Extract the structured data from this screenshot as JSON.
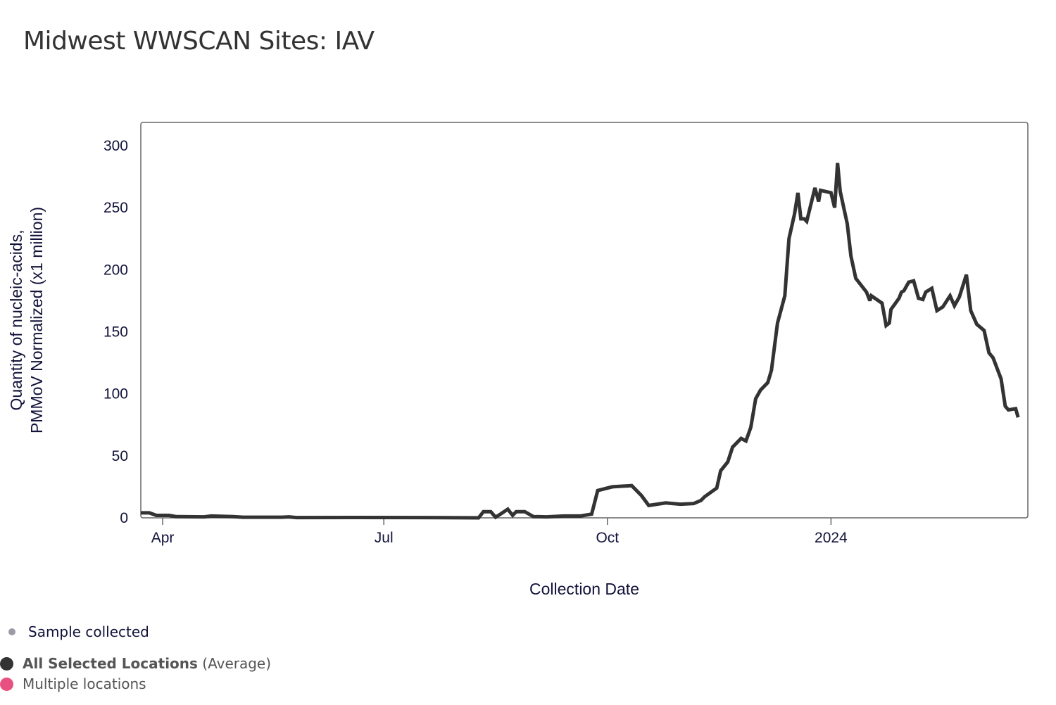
{
  "title": "Midwest WWSCAN Sites: IAV",
  "chart_data": {
    "type": "line",
    "title": "Midwest WWSCAN Sites: IAV",
    "xlabel": "Collection Date",
    "ylabel_lines": [
      "Quantity of nucleic-acids,",
      "PMMoV Normalized (x1 million)"
    ],
    "x_unit": "days since 2023-04-01",
    "xlim": [
      -9,
      356
    ],
    "ylim": [
      0,
      300
    ],
    "yticks": [
      0,
      50,
      100,
      150,
      200,
      250,
      300
    ],
    "xticks": [
      {
        "label": "Apr",
        "x": 0
      },
      {
        "label": "Jul",
        "x": 91
      },
      {
        "label": "Oct",
        "x": 183
      },
      {
        "label": "2024",
        "x": 275
      }
    ],
    "grid": false,
    "series": [
      {
        "name": "All Selected Locations (Average)",
        "color": "#333333",
        "x": [
          -9,
          -5.5,
          -2.6,
          2.6,
          5.5,
          17,
          20,
          29,
          33,
          49,
          52,
          55,
          78,
          107,
          130,
          132,
          135,
          137,
          139,
          142,
          144,
          145.5,
          149,
          152.5,
          158,
          165,
          172,
          176.5,
          179,
          185,
          193,
          197,
          200,
          207,
          213,
          218.5,
          221.5,
          223,
          228,
          229.6,
          232.5,
          234.5,
          238,
          240,
          242,
          244,
          246,
          249,
          250.5,
          253,
          256,
          257.7,
          260,
          261.4,
          262.6,
          264,
          265,
          268.4,
          269.9,
          270.7,
          275,
          276.5,
          277.7,
          278.8,
          281.7,
          283.2,
          285.2,
          289.6,
          291,
          291.6,
          296,
          297.7,
          299,
          299.7,
          303,
          304,
          305,
          307,
          309,
          311,
          312.8,
          314,
          316.5,
          318.6,
          321,
          324,
          325.8,
          327.8,
          330.7,
          332.5,
          335,
          338,
          340,
          341.7,
          345,
          346.7,
          348,
          351,
          352
        ],
        "y": [
          4,
          4,
          2,
          2,
          1,
          0.8,
          1.5,
          1,
          0.5,
          0.5,
          0.8,
          0.2,
          0.3,
          0.2,
          0,
          5,
          5,
          0.5,
          3,
          7,
          2,
          5,
          5,
          1,
          0.8,
          1.5,
          1.5,
          3,
          22,
          25,
          26,
          18,
          10,
          12,
          11,
          11.5,
          14,
          17,
          24,
          38,
          45,
          57,
          64,
          62,
          73,
          96,
          103,
          109,
          119,
          157,
          179,
          225,
          245,
          262,
          241,
          241,
          239,
          266,
          255,
          264,
          262,
          250,
          286,
          263,
          237,
          211,
          193,
          182,
          175,
          179,
          173,
          155,
          157,
          168,
          177,
          182,
          183,
          190,
          191,
          177,
          176,
          182,
          185,
          167,
          170,
          179,
          171,
          178,
          196,
          167,
          156,
          151,
          133,
          129,
          112,
          90,
          87,
          88,
          81
        ]
      }
    ]
  },
  "legend": {
    "sample": {
      "label": "Sample collected",
      "color": "#9a9aa8"
    },
    "average": {
      "label_bold": "All Selected Locations",
      "label_suffix": "(Average)",
      "color": "#333333"
    },
    "multiple": {
      "label": "Multiple locations",
      "color": "#e8517f"
    }
  }
}
